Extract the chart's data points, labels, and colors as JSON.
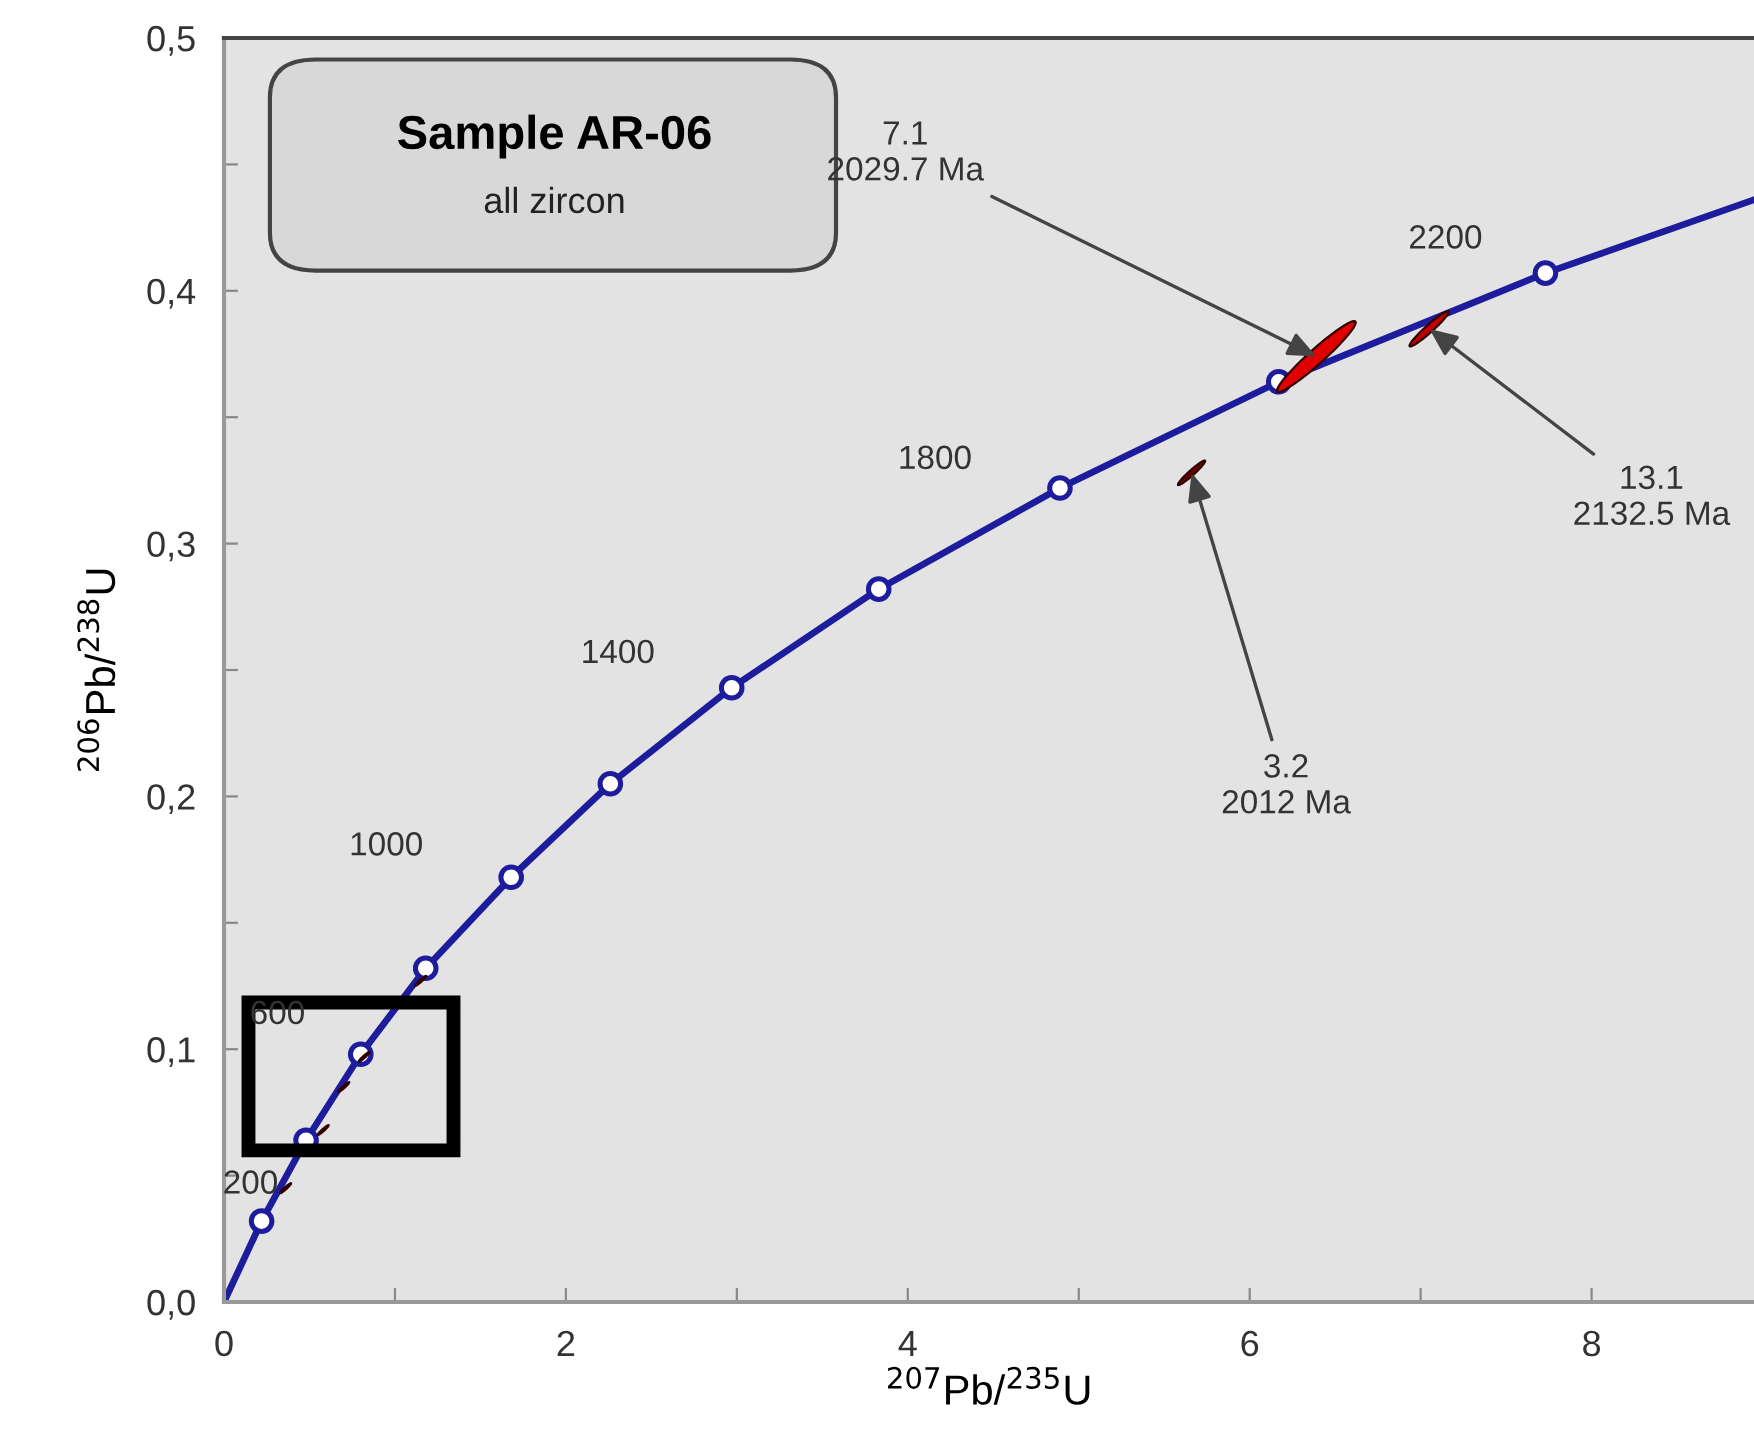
{
  "chart_data": {
    "type": "scatter",
    "title": "Sample AR-06",
    "subtitle": "all zircon",
    "xlabel": "$^{207}$Pb/$^{235}$U",
    "ylabel": "$^{206}$Pb/$^{238}$U",
    "xlim": [
      0,
      8.95
    ],
    "ylim": [
      0,
      0.5
    ],
    "xticks": [
      0,
      {
        "value": 1,
        "label": null
      },
      2,
      {
        "value": 3,
        "label": null
      },
      4,
      {
        "value": 5,
        "label": null
      },
      6,
      {
        "value": 7,
        "label": null
      },
      8
    ],
    "yticks": [
      {
        "value": 0,
        "label": "0,0"
      },
      {
        "value": 0.05,
        "label": null
      },
      {
        "value": 0.1,
        "label": "0,1"
      },
      {
        "value": 0.15,
        "label": null
      },
      {
        "value": 0.2,
        "label": "0,2"
      },
      {
        "value": 0.25,
        "label": null
      },
      {
        "value": 0.3,
        "label": "0,3"
      },
      {
        "value": 0.35,
        "label": null
      },
      {
        "value": 0.4,
        "label": "0,4"
      },
      {
        "value": 0.45,
        "label": null
      },
      {
        "value": 0.5,
        "label": "0,5"
      }
    ],
    "grid": false,
    "series": [
      {
        "type": "line",
        "marker": "none",
        "color": "#1c1c9c",
        "x": [
          0,
          0.22,
          0.48,
          0.8,
          1.18,
          1.68,
          2.26,
          2.97,
          3.83,
          4.89,
          6.17,
          7.73,
          8.95
        ],
        "values": [
          0,
          0.032,
          0.064,
          0.098,
          0.132,
          0.168,
          0.205,
          0.243,
          0.282,
          0.322,
          0.364,
          0.407,
          0.436
        ]
      },
      {
        "marker": "circle",
        "color": "#1c1c9c",
        "x": [
          0.22,
          0.48,
          0.8,
          1.18,
          1.68,
          2.26,
          2.97,
          3.83,
          4.89,
          6.17,
          7.73
        ],
        "values": [
          0.032,
          0.064,
          0.098,
          0.132,
          0.168,
          0.205,
          0.243,
          0.282,
          0.322,
          0.364,
          0.407
        ]
      },
      {
        "type": "bubble",
        "x": [
          6.39,
          7.05,
          5.66,
          0.36,
          0.58,
          0.7,
          0.82,
          1.15
        ],
        "values": [
          0.374,
          0.385,
          0.328,
          0.045,
          0.068,
          0.085,
          0.097,
          0.127
        ],
        "sizes": [
          1,
          0.25,
          0.12,
          0.02,
          0.02,
          0.02,
          0.02,
          0.02
        ],
        "colors": [
          "#e00000",
          "#c00000",
          "#6a0000",
          "#400000",
          "#400000",
          "#400000",
          "#400000",
          "#400000"
        ]
      }
    ],
    "annotations": [
      {
        "text": "200",
        "x": 0.22,
        "y": 0.032
      },
      {
        "text": "600",
        "x": 0.8,
        "y": 0.098
      },
      {
        "text": "1000",
        "x": 1.68,
        "y": 0.168
      },
      {
        "text": "1400",
        "x": 2.97,
        "y": 0.243
      },
      {
        "text": "1800",
        "x": 4.89,
        "y": 0.322
      },
      {
        "text": "2200",
        "x": 7.73,
        "y": 0.407
      },
      {
        "text": "7.1\n2029.7 Ma",
        "x": 6.39,
        "y": 0.374
      },
      {
        "text": "13.1\n2132.5 Ma",
        "x": 7.05,
        "y": 0.385
      },
      {
        "text": "3.2\n2012 Ma",
        "x": 5.66,
        "y": 0.328
      }
    ]
  }
}
